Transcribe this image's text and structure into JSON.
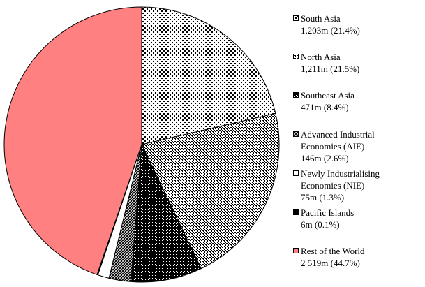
{
  "chart_data": {
    "type": "pie",
    "categories": [
      "South Asia",
      "North Asia",
      "Southeast Asia",
      "Advanced Industrial Economies (AIE)",
      "Newly Industrialising Economies (NIE)",
      "Pacific Islands",
      "Rest of the World"
    ],
    "values": [
      1203,
      1211,
      471,
      146,
      75,
      6,
      2519
    ],
    "value_labels": [
      "1,203m (21.4%)",
      "1,211m (21.5%)",
      "471m (8.4%)",
      "146m (2.6%)",
      "75m (1.3%)",
      "6m (0.1%)",
      "2 519m (44.7%)"
    ],
    "colors": [
      "#000000",
      "#000000",
      "#000000",
      "#000000",
      "#ffffff",
      "#000000",
      "#ff8080"
    ],
    "patterns": [
      "dots",
      "checker",
      "dense-dots",
      "hatch",
      null,
      null,
      null
    ],
    "start_angle": 0,
    "direction": "clockwise"
  }
}
